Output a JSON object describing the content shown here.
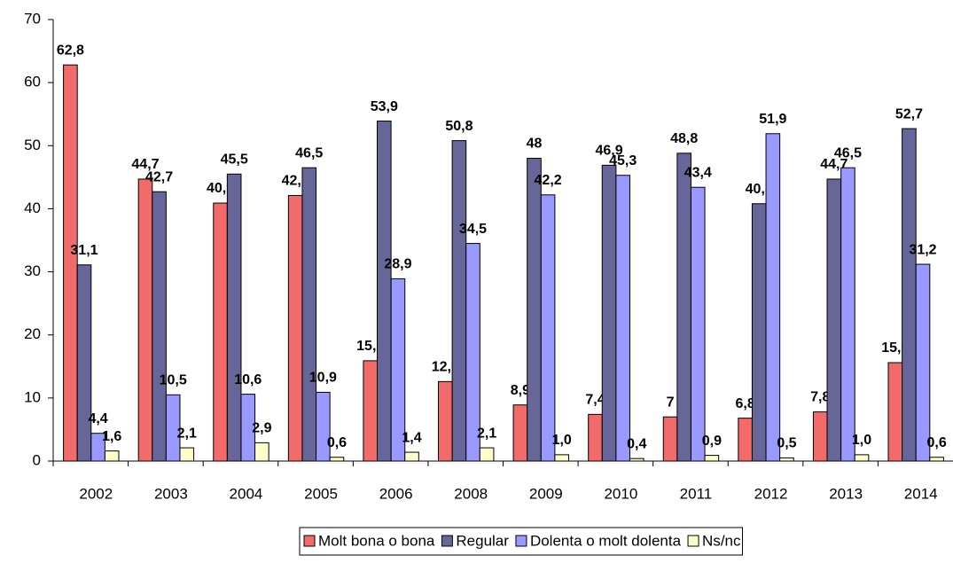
{
  "chart_data": {
    "type": "bar",
    "categories": [
      "2002",
      "2003",
      "2004",
      "2005",
      "2006",
      "2008",
      "2009",
      "2010",
      "2011",
      "2012",
      "2013",
      "2014"
    ],
    "series": [
      {
        "name": "Molt bona o bona",
        "color": "#f26b6b",
        "values": [
          62.8,
          44.7,
          40.9,
          42.1,
          15.9,
          12.6,
          8.9,
          7.4,
          7,
          6.8,
          7.8,
          15.6
        ],
        "value_labels": [
          "62,8",
          "44,7",
          "40,9",
          "42,1",
          "15,9",
          "12,6",
          "8,9",
          "7,4",
          "7",
          "6,8",
          "7,8",
          "15,6"
        ]
      },
      {
        "name": "Regular",
        "color": "#666699",
        "values": [
          31.1,
          42.7,
          45.5,
          46.5,
          53.9,
          50.8,
          48,
          46.9,
          48.8,
          40.8,
          44.7,
          52.7
        ],
        "value_labels": [
          "31,1",
          "42,7",
          "45,5",
          "46,5",
          "53,9",
          "50,8",
          "48",
          "46,9",
          "48,8",
          "40,8",
          "44,7",
          "52,7"
        ]
      },
      {
        "name": "Dolenta o molt dolenta",
        "color": "#9999ff",
        "values": [
          4.4,
          10.5,
          10.6,
          10.9,
          28.9,
          34.5,
          42.2,
          45.3,
          43.4,
          51.9,
          46.5,
          31.2
        ],
        "value_labels": [
          "4,4",
          "10,5",
          "10,6",
          "10,9",
          "28,9",
          "34,5",
          "42,2",
          "45,3",
          "43,4",
          "51,9",
          "46,5",
          "31,2"
        ]
      },
      {
        "name": "Ns/nc",
        "color": "#ffffcc",
        "values": [
          1.6,
          2.1,
          2.9,
          0.6,
          1.4,
          2.1,
          1.0,
          0.4,
          0.9,
          0.5,
          1.0,
          0.6
        ],
        "value_labels": [
          "1,6",
          "2,1",
          "2,9",
          "0,6",
          "1,4",
          "2,1",
          "1,0",
          "0,4",
          "0,9",
          "0,5",
          "1,0",
          "0,6"
        ]
      }
    ],
    "ylim": [
      0,
      70
    ],
    "yticks": [
      0,
      10,
      20,
      30,
      40,
      50,
      60,
      70
    ],
    "grid": false,
    "legend": "bottom"
  }
}
